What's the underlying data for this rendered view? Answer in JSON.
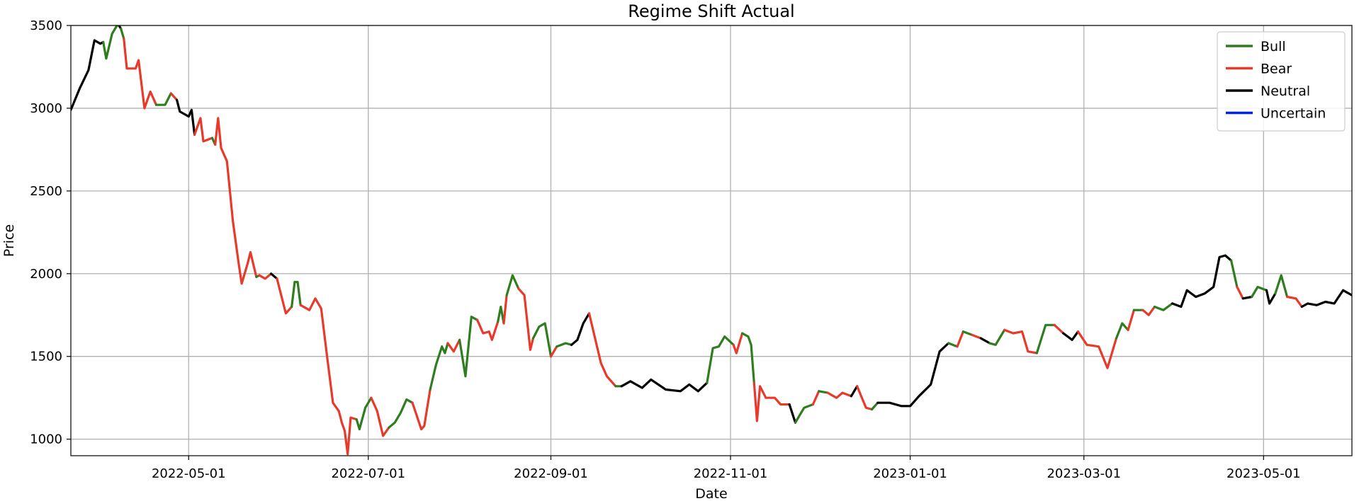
{
  "chart_data": {
    "type": "line",
    "title": "Regime Shift Actual",
    "xlabel": "Date",
    "ylabel": "Price",
    "xlim": [
      "2022-03-22",
      "2023-05-31"
    ],
    "ylim": [
      900,
      3500
    ],
    "yticks": [
      1000,
      1500,
      2000,
      2500,
      3000,
      3500
    ],
    "xticks": [
      "2022-05-01",
      "2022-07-01",
      "2022-09-01",
      "2022-11-01",
      "2023-01-01",
      "2023-03-01",
      "2023-05-01"
    ],
    "grid": true,
    "legend_position": "top-right",
    "series": [
      {
        "name": "Bull",
        "color": "#2e7d1f"
      },
      {
        "name": "Bear",
        "color": "#e8392a"
      },
      {
        "name": "Neutral",
        "color": "#000000"
      },
      {
        "name": "Uncertain",
        "color": "#0022ee"
      }
    ],
    "points": [
      {
        "x": "2022-03-22",
        "y": 2990,
        "regime": "Neutral"
      },
      {
        "x": "2022-03-25",
        "y": 3120,
        "regime": "Neutral"
      },
      {
        "x": "2022-03-28",
        "y": 3230,
        "regime": "Neutral"
      },
      {
        "x": "2022-03-30",
        "y": 3410,
        "regime": "Neutral"
      },
      {
        "x": "2022-04-01",
        "y": 3390,
        "regime": "Neutral"
      },
      {
        "x": "2022-04-02",
        "y": 3400,
        "regime": "Neutral"
      },
      {
        "x": "2022-04-03",
        "y": 3300,
        "regime": "Bull"
      },
      {
        "x": "2022-04-05",
        "y": 3450,
        "regime": "Bull"
      },
      {
        "x": "2022-04-07",
        "y": 3510,
        "regime": "Bull"
      },
      {
        "x": "2022-04-08",
        "y": 3480,
        "regime": "Neutral"
      },
      {
        "x": "2022-04-09",
        "y": 3420,
        "regime": "Bull"
      },
      {
        "x": "2022-04-10",
        "y": 3240,
        "regime": "Bear"
      },
      {
        "x": "2022-04-13",
        "y": 3240,
        "regime": "Bear"
      },
      {
        "x": "2022-04-14",
        "y": 3290,
        "regime": "Bear"
      },
      {
        "x": "2022-04-16",
        "y": 3000,
        "regime": "Bear"
      },
      {
        "x": "2022-04-18",
        "y": 3100,
        "regime": "Bear"
      },
      {
        "x": "2022-04-20",
        "y": 3020,
        "regime": "Bear"
      },
      {
        "x": "2022-04-23",
        "y": 3020,
        "regime": "Bull"
      },
      {
        "x": "2022-04-25",
        "y": 3090,
        "regime": "Bull"
      },
      {
        "x": "2022-04-27",
        "y": 3050,
        "regime": "Bear"
      },
      {
        "x": "2022-04-28",
        "y": 2980,
        "regime": "Neutral"
      },
      {
        "x": "2022-05-01",
        "y": 2950,
        "regime": "Neutral"
      },
      {
        "x": "2022-05-02",
        "y": 2990,
        "regime": "Neutral"
      },
      {
        "x": "2022-05-03",
        "y": 2840,
        "regime": "Neutral"
      },
      {
        "x": "2022-05-05",
        "y": 2940,
        "regime": "Bear"
      },
      {
        "x": "2022-05-06",
        "y": 2800,
        "regime": "Bear"
      },
      {
        "x": "2022-05-09",
        "y": 2820,
        "regime": "Bear"
      },
      {
        "x": "2022-05-10",
        "y": 2780,
        "regime": "Bull"
      },
      {
        "x": "2022-05-11",
        "y": 2940,
        "regime": "Bear"
      },
      {
        "x": "2022-05-12",
        "y": 2760,
        "regime": "Bear"
      },
      {
        "x": "2022-05-14",
        "y": 2680,
        "regime": "Bear"
      },
      {
        "x": "2022-05-16",
        "y": 2320,
        "regime": "Bear"
      },
      {
        "x": "2022-05-18",
        "y": 2060,
        "regime": "Bear"
      },
      {
        "x": "2022-05-19",
        "y": 1940,
        "regime": "Bear"
      },
      {
        "x": "2022-05-21",
        "y": 2060,
        "regime": "Bear"
      },
      {
        "x": "2022-05-22",
        "y": 2130,
        "regime": "Bear"
      },
      {
        "x": "2022-05-24",
        "y": 1980,
        "regime": "Bear"
      },
      {
        "x": "2022-05-25",
        "y": 1990,
        "regime": "Bull"
      },
      {
        "x": "2022-05-27",
        "y": 1970,
        "regime": "Bear"
      },
      {
        "x": "2022-05-29",
        "y": 2000,
        "regime": "Bear"
      },
      {
        "x": "2022-05-31",
        "y": 1970,
        "regime": "Neutral"
      },
      {
        "x": "2022-06-03",
        "y": 1760,
        "regime": "Bear"
      },
      {
        "x": "2022-06-05",
        "y": 1800,
        "regime": "Bear"
      },
      {
        "x": "2022-06-06",
        "y": 1950,
        "regime": "Bull"
      },
      {
        "x": "2022-06-07",
        "y": 1950,
        "regime": "Bull"
      },
      {
        "x": "2022-06-08",
        "y": 1810,
        "regime": "Bull"
      },
      {
        "x": "2022-06-11",
        "y": 1780,
        "regime": "Bear"
      },
      {
        "x": "2022-06-13",
        "y": 1850,
        "regime": "Bear"
      },
      {
        "x": "2022-06-15",
        "y": 1790,
        "regime": "Bear"
      },
      {
        "x": "2022-06-17",
        "y": 1500,
        "regime": "Bear"
      },
      {
        "x": "2022-06-19",
        "y": 1220,
        "regime": "Bear"
      },
      {
        "x": "2022-06-21",
        "y": 1170,
        "regime": "Bear"
      },
      {
        "x": "2022-06-22",
        "y": 1100,
        "regime": "Bear"
      },
      {
        "x": "2022-06-23",
        "y": 1050,
        "regime": "Bear"
      },
      {
        "x": "2022-06-24",
        "y": 910,
        "regime": "Bear"
      },
      {
        "x": "2022-06-25",
        "y": 1130,
        "regime": "Bear"
      },
      {
        "x": "2022-06-27",
        "y": 1120,
        "regime": "Bear"
      },
      {
        "x": "2022-06-28",
        "y": 1060,
        "regime": "Bull"
      },
      {
        "x": "2022-06-30",
        "y": 1190,
        "regime": "Bull"
      },
      {
        "x": "2022-07-02",
        "y": 1250,
        "regime": "Bull"
      },
      {
        "x": "2022-07-04",
        "y": 1170,
        "regime": "Bear"
      },
      {
        "x": "2022-07-06",
        "y": 1020,
        "regime": "Bear"
      },
      {
        "x": "2022-07-08",
        "y": 1070,
        "regime": "Bear"
      },
      {
        "x": "2022-07-10",
        "y": 1100,
        "regime": "Bull"
      },
      {
        "x": "2022-07-12",
        "y": 1160,
        "regime": "Bull"
      },
      {
        "x": "2022-07-14",
        "y": 1240,
        "regime": "Bull"
      },
      {
        "x": "2022-07-16",
        "y": 1220,
        "regime": "Bull"
      },
      {
        "x": "2022-07-19",
        "y": 1060,
        "regime": "Bear"
      },
      {
        "x": "2022-07-20",
        "y": 1080,
        "regime": "Bear"
      },
      {
        "x": "2022-07-22",
        "y": 1300,
        "regime": "Bear"
      },
      {
        "x": "2022-07-24",
        "y": 1450,
        "regime": "Bull"
      },
      {
        "x": "2022-07-26",
        "y": 1560,
        "regime": "Bull"
      },
      {
        "x": "2022-07-27",
        "y": 1520,
        "regime": "Bull"
      },
      {
        "x": "2022-07-28",
        "y": 1580,
        "regime": "Bull"
      },
      {
        "x": "2022-07-30",
        "y": 1530,
        "regime": "Bear"
      },
      {
        "x": "2022-08-01",
        "y": 1600,
        "regime": "Bear"
      },
      {
        "x": "2022-08-03",
        "y": 1380,
        "regime": "Bull"
      },
      {
        "x": "2022-08-05",
        "y": 1740,
        "regime": "Bull"
      },
      {
        "x": "2022-08-07",
        "y": 1720,
        "regime": "Bull"
      },
      {
        "x": "2022-08-09",
        "y": 1640,
        "regime": "Bear"
      },
      {
        "x": "2022-08-11",
        "y": 1650,
        "regime": "Bear"
      },
      {
        "x": "2022-08-12",
        "y": 1600,
        "regime": "Bear"
      },
      {
        "x": "2022-08-14",
        "y": 1710,
        "regime": "Bear"
      },
      {
        "x": "2022-08-15",
        "y": 1800,
        "regime": "Bull"
      },
      {
        "x": "2022-08-16",
        "y": 1700,
        "regime": "Bull"
      },
      {
        "x": "2022-08-17",
        "y": 1870,
        "regime": "Bear"
      },
      {
        "x": "2022-08-19",
        "y": 1990,
        "regime": "Bull"
      },
      {
        "x": "2022-08-21",
        "y": 1910,
        "regime": "Bull"
      },
      {
        "x": "2022-08-23",
        "y": 1870,
        "regime": "Bear"
      },
      {
        "x": "2022-08-25",
        "y": 1540,
        "regime": "Bear"
      },
      {
        "x": "2022-08-26",
        "y": 1610,
        "regime": "Bear"
      },
      {
        "x": "2022-08-28",
        "y": 1680,
        "regime": "Bull"
      },
      {
        "x": "2022-08-30",
        "y": 1700,
        "regime": "Bull"
      },
      {
        "x": "2022-09-01",
        "y": 1500,
        "regime": "Bull"
      },
      {
        "x": "2022-09-03",
        "y": 1560,
        "regime": "Bear"
      },
      {
        "x": "2022-09-06",
        "y": 1580,
        "regime": "Bull"
      },
      {
        "x": "2022-09-08",
        "y": 1570,
        "regime": "Bull"
      },
      {
        "x": "2022-09-10",
        "y": 1600,
        "regime": "Neutral"
      },
      {
        "x": "2022-09-12",
        "y": 1700,
        "regime": "Neutral"
      },
      {
        "x": "2022-09-14",
        "y": 1760,
        "regime": "Neutral"
      },
      {
        "x": "2022-09-16",
        "y": 1610,
        "regime": "Bear"
      },
      {
        "x": "2022-09-18",
        "y": 1460,
        "regime": "Bear"
      },
      {
        "x": "2022-09-20",
        "y": 1380,
        "regime": "Bear"
      },
      {
        "x": "2022-09-23",
        "y": 1320,
        "regime": "Bear"
      },
      {
        "x": "2022-09-25",
        "y": 1320,
        "regime": "Bull"
      },
      {
        "x": "2022-09-28",
        "y": 1350,
        "regime": "Neutral"
      },
      {
        "x": "2022-10-02",
        "y": 1310,
        "regime": "Neutral"
      },
      {
        "x": "2022-10-05",
        "y": 1360,
        "regime": "Neutral"
      },
      {
        "x": "2022-10-10",
        "y": 1300,
        "regime": "Neutral"
      },
      {
        "x": "2022-10-15",
        "y": 1290,
        "regime": "Neutral"
      },
      {
        "x": "2022-10-18",
        "y": 1330,
        "regime": "Neutral"
      },
      {
        "x": "2022-10-21",
        "y": 1290,
        "regime": "Neutral"
      },
      {
        "x": "2022-10-24",
        "y": 1340,
        "regime": "Neutral"
      },
      {
        "x": "2022-10-26",
        "y": 1550,
        "regime": "Bull"
      },
      {
        "x": "2022-10-28",
        "y": 1560,
        "regime": "Bull"
      },
      {
        "x": "2022-10-30",
        "y": 1620,
        "regime": "Bull"
      },
      {
        "x": "2022-11-02",
        "y": 1570,
        "regime": "Bull"
      },
      {
        "x": "2022-11-03",
        "y": 1520,
        "regime": "Bear"
      },
      {
        "x": "2022-11-05",
        "y": 1640,
        "regime": "Bear"
      },
      {
        "x": "2022-11-07",
        "y": 1620,
        "regime": "Bull"
      },
      {
        "x": "2022-11-08",
        "y": 1570,
        "regime": "Bull"
      },
      {
        "x": "2022-11-09",
        "y": 1340,
        "regime": "Bull"
      },
      {
        "x": "2022-11-10",
        "y": 1110,
        "regime": "Bear"
      },
      {
        "x": "2022-11-11",
        "y": 1320,
        "regime": "Bear"
      },
      {
        "x": "2022-11-13",
        "y": 1250,
        "regime": "Bear"
      },
      {
        "x": "2022-11-16",
        "y": 1250,
        "regime": "Bear"
      },
      {
        "x": "2022-11-18",
        "y": 1210,
        "regime": "Bear"
      },
      {
        "x": "2022-11-21",
        "y": 1210,
        "regime": "Bear"
      },
      {
        "x": "2022-11-23",
        "y": 1100,
        "regime": "Neutral"
      },
      {
        "x": "2022-11-26",
        "y": 1190,
        "regime": "Bull"
      },
      {
        "x": "2022-11-29",
        "y": 1210,
        "regime": "Bull"
      },
      {
        "x": "2022-12-01",
        "y": 1290,
        "regime": "Bear"
      },
      {
        "x": "2022-12-04",
        "y": 1280,
        "regime": "Bull"
      },
      {
        "x": "2022-12-07",
        "y": 1250,
        "regime": "Bear"
      },
      {
        "x": "2022-12-09",
        "y": 1280,
        "regime": "Bear"
      },
      {
        "x": "2022-12-12",
        "y": 1260,
        "regime": "Bear"
      },
      {
        "x": "2022-12-14",
        "y": 1320,
        "regime": "Neutral"
      },
      {
        "x": "2022-12-17",
        "y": 1190,
        "regime": "Bear"
      },
      {
        "x": "2022-12-19",
        "y": 1180,
        "regime": "Bear"
      },
      {
        "x": "2022-12-21",
        "y": 1220,
        "regime": "Bull"
      },
      {
        "x": "2022-12-25",
        "y": 1220,
        "regime": "Neutral"
      },
      {
        "x": "2022-12-29",
        "y": 1200,
        "regime": "Neutral"
      },
      {
        "x": "2023-01-01",
        "y": 1200,
        "regime": "Neutral"
      },
      {
        "x": "2023-01-04",
        "y": 1260,
        "regime": "Neutral"
      },
      {
        "x": "2023-01-08",
        "y": 1330,
        "regime": "Neutral"
      },
      {
        "x": "2023-01-11",
        "y": 1530,
        "regime": "Neutral"
      },
      {
        "x": "2023-01-14",
        "y": 1580,
        "regime": "Neutral"
      },
      {
        "x": "2023-01-17",
        "y": 1560,
        "regime": "Bull"
      },
      {
        "x": "2023-01-19",
        "y": 1650,
        "regime": "Bear"
      },
      {
        "x": "2023-01-22",
        "y": 1630,
        "regime": "Bull"
      },
      {
        "x": "2023-01-25",
        "y": 1610,
        "regime": "Bear"
      },
      {
        "x": "2023-01-28",
        "y": 1580,
        "regime": "Neutral"
      },
      {
        "x": "2023-01-30",
        "y": 1570,
        "regime": "Bull"
      },
      {
        "x": "2023-02-02",
        "y": 1660,
        "regime": "Bull"
      },
      {
        "x": "2023-02-05",
        "y": 1640,
        "regime": "Bear"
      },
      {
        "x": "2023-02-08",
        "y": 1650,
        "regime": "Bear"
      },
      {
        "x": "2023-02-10",
        "y": 1530,
        "regime": "Bear"
      },
      {
        "x": "2023-02-13",
        "y": 1520,
        "regime": "Bear"
      },
      {
        "x": "2023-02-16",
        "y": 1690,
        "regime": "Bull"
      },
      {
        "x": "2023-02-19",
        "y": 1690,
        "regime": "Bull"
      },
      {
        "x": "2023-02-22",
        "y": 1640,
        "regime": "Bear"
      },
      {
        "x": "2023-02-25",
        "y": 1600,
        "regime": "Neutral"
      },
      {
        "x": "2023-02-27",
        "y": 1650,
        "regime": "Neutral"
      },
      {
        "x": "2023-03-02",
        "y": 1570,
        "regime": "Bear"
      },
      {
        "x": "2023-03-06",
        "y": 1560,
        "regime": "Bear"
      },
      {
        "x": "2023-03-09",
        "y": 1430,
        "regime": "Bear"
      },
      {
        "x": "2023-03-12",
        "y": 1610,
        "regime": "Bear"
      },
      {
        "x": "2023-03-14",
        "y": 1700,
        "regime": "Bull"
      },
      {
        "x": "2023-03-16",
        "y": 1660,
        "regime": "Bull"
      },
      {
        "x": "2023-03-18",
        "y": 1780,
        "regime": "Bear"
      },
      {
        "x": "2023-03-21",
        "y": 1780,
        "regime": "Bull"
      },
      {
        "x": "2023-03-23",
        "y": 1750,
        "regime": "Bear"
      },
      {
        "x": "2023-03-25",
        "y": 1800,
        "regime": "Bear"
      },
      {
        "x": "2023-03-28",
        "y": 1780,
        "regime": "Bull"
      },
      {
        "x": "2023-03-31",
        "y": 1820,
        "regime": "Bull"
      },
      {
        "x": "2023-04-03",
        "y": 1800,
        "regime": "Neutral"
      },
      {
        "x": "2023-04-05",
        "y": 1900,
        "regime": "Neutral"
      },
      {
        "x": "2023-04-08",
        "y": 1860,
        "regime": "Neutral"
      },
      {
        "x": "2023-04-11",
        "y": 1880,
        "regime": "Neutral"
      },
      {
        "x": "2023-04-14",
        "y": 1920,
        "regime": "Neutral"
      },
      {
        "x": "2023-04-16",
        "y": 2100,
        "regime": "Neutral"
      },
      {
        "x": "2023-04-18",
        "y": 2110,
        "regime": "Neutral"
      },
      {
        "x": "2023-04-20",
        "y": 2080,
        "regime": "Neutral"
      },
      {
        "x": "2023-04-22",
        "y": 1920,
        "regime": "Bull"
      },
      {
        "x": "2023-04-24",
        "y": 1850,
        "regime": "Bear"
      },
      {
        "x": "2023-04-27",
        "y": 1860,
        "regime": "Neutral"
      },
      {
        "x": "2023-04-29",
        "y": 1920,
        "regime": "Bull"
      },
      {
        "x": "2023-05-02",
        "y": 1900,
        "regime": "Bull"
      },
      {
        "x": "2023-05-03",
        "y": 1820,
        "regime": "Neutral"
      },
      {
        "x": "2023-05-05",
        "y": 1880,
        "regime": "Neutral"
      },
      {
        "x": "2023-05-07",
        "y": 1990,
        "regime": "Bull"
      },
      {
        "x": "2023-05-09",
        "y": 1860,
        "regime": "Bull"
      },
      {
        "x": "2023-05-12",
        "y": 1850,
        "regime": "Bear"
      },
      {
        "x": "2023-05-14",
        "y": 1800,
        "regime": "Bear"
      },
      {
        "x": "2023-05-16",
        "y": 1820,
        "regime": "Neutral"
      },
      {
        "x": "2023-05-19",
        "y": 1810,
        "regime": "Neutral"
      },
      {
        "x": "2023-05-22",
        "y": 1830,
        "regime": "Neutral"
      },
      {
        "x": "2023-05-25",
        "y": 1820,
        "regime": "Neutral"
      },
      {
        "x": "2023-05-28",
        "y": 1900,
        "regime": "Neutral"
      },
      {
        "x": "2023-05-31",
        "y": 1870,
        "regime": "Neutral"
      }
    ]
  }
}
